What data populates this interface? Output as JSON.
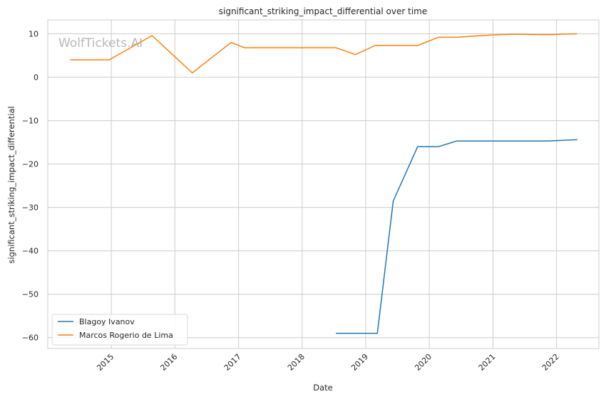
{
  "watermark": "WolfTickets.AI",
  "chart_data": {
    "type": "line",
    "title": "significant_striking_impact_differential over time",
    "xlabel": "Date",
    "ylabel": "significant_striking_impact_differential",
    "xlim": [
      "2014-01-01",
      "2022-09-01"
    ],
    "ylim": [
      -62.5,
      13.2
    ],
    "x_ticks": [
      "2015",
      "2016",
      "2017",
      "2018",
      "2019",
      "2020",
      "2021",
      "2022"
    ],
    "y_ticks": [
      10,
      0,
      -10,
      -20,
      -30,
      -40,
      -50,
      -60
    ],
    "grid": true,
    "legend_position": "lower-left",
    "series": [
      {
        "name": "Blagoy Ivanov",
        "color": "#1f77b4",
        "points": [
          [
            "2018-07-14",
            -59
          ],
          [
            "2019-03-09",
            -59
          ],
          [
            "2019-06-08",
            -28.5
          ],
          [
            "2019-10-26",
            -16
          ],
          [
            "2020-02-22",
            -16
          ],
          [
            "2020-06-06",
            -14.7
          ],
          [
            "2021-11-13",
            -14.7
          ],
          [
            "2022-04-30",
            -14.4
          ]
        ]
      },
      {
        "name": "Marcos Rogerio de Lima",
        "color": "#ff7f0e",
        "points": [
          [
            "2014-05-10",
            4
          ],
          [
            "2014-12-20",
            4
          ],
          [
            "2015-08-23",
            9.6
          ],
          [
            "2016-04-10",
            1
          ],
          [
            "2016-11-19",
            8
          ],
          [
            "2017-02-04",
            6.8
          ],
          [
            "2018-07-14",
            6.8
          ],
          [
            "2018-11-03",
            5.2
          ],
          [
            "2019-02-23",
            7.3
          ],
          [
            "2019-10-26",
            7.3
          ],
          [
            "2020-02-22",
            9.2
          ],
          [
            "2020-06-06",
            9.2
          ],
          [
            "2020-12-12",
            9.7
          ],
          [
            "2021-04-17",
            9.9
          ],
          [
            "2021-11-13",
            9.8
          ],
          [
            "2022-04-30",
            10
          ]
        ]
      }
    ]
  }
}
